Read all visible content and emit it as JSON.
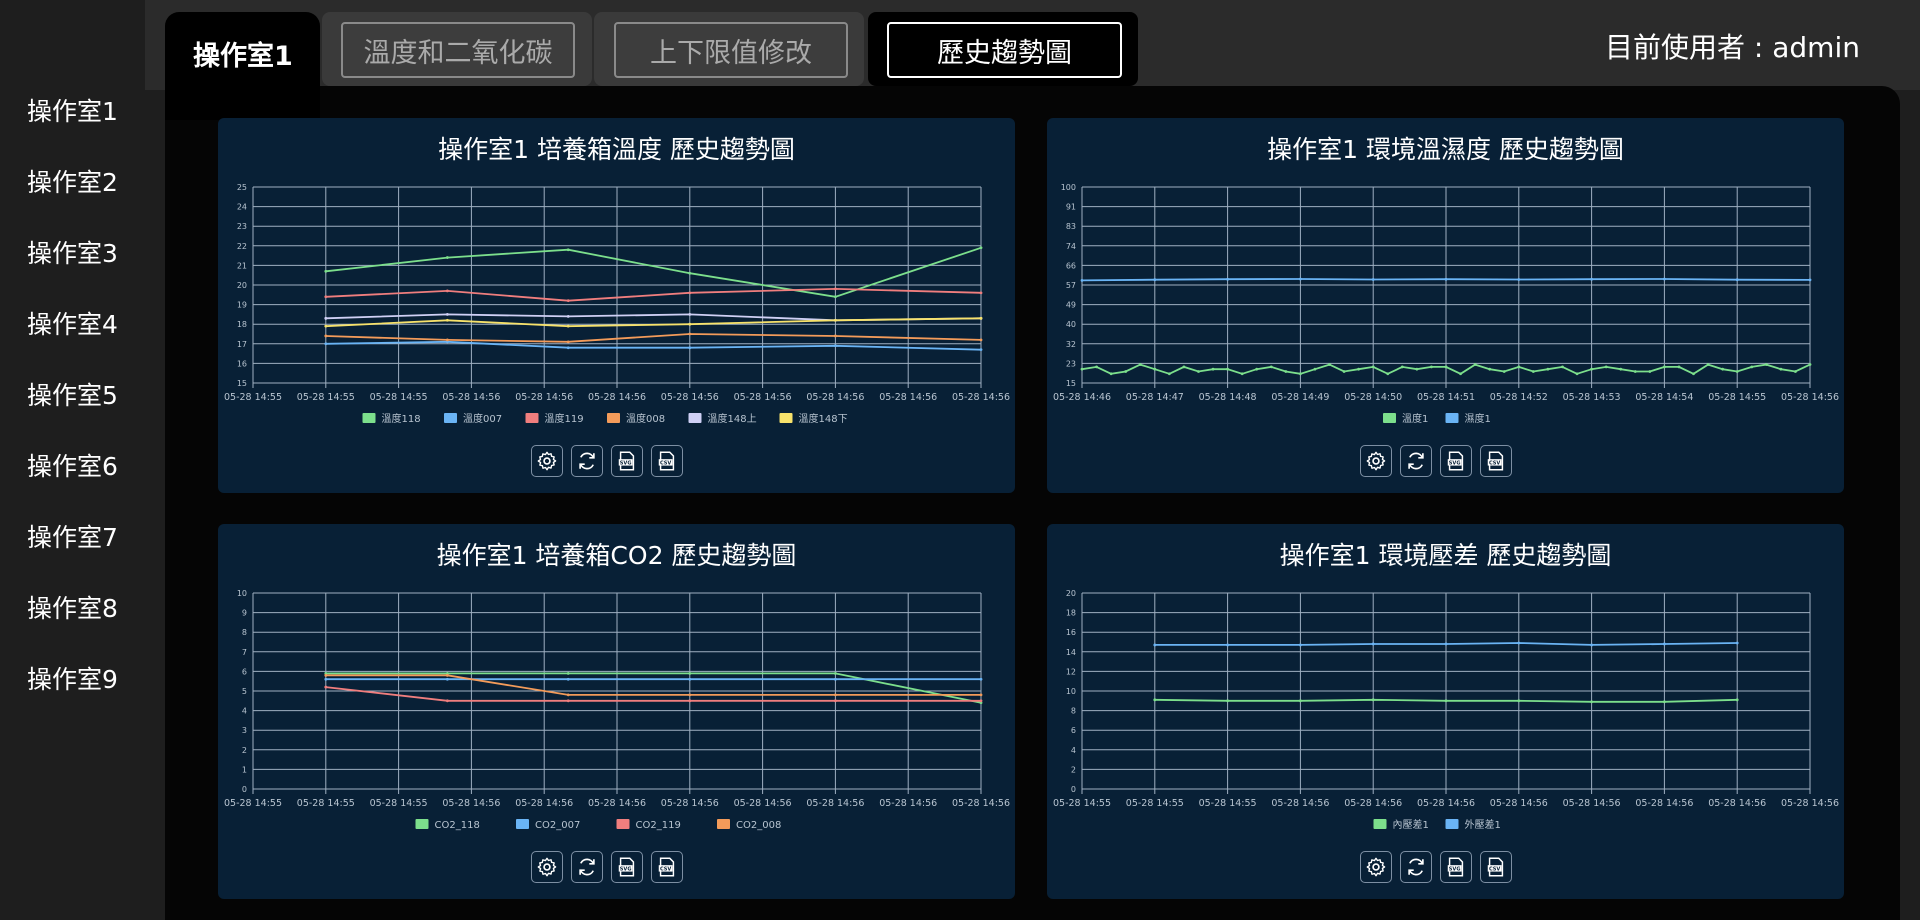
{
  "sidebar": {
    "items": [
      {
        "label": "操作室1"
      },
      {
        "label": "操作室2"
      },
      {
        "label": "操作室3"
      },
      {
        "label": "操作室4"
      },
      {
        "label": "操作室5"
      },
      {
        "label": "操作室6"
      },
      {
        "label": "操作室7"
      },
      {
        "label": "操作室8"
      },
      {
        "label": "操作室9"
      }
    ]
  },
  "header": {
    "room_tab": "操作室1",
    "tabs": [
      {
        "label": "溫度和二氧化碳"
      },
      {
        "label": "上下限值修改"
      },
      {
        "label": "歷史趨勢圖"
      }
    ],
    "active_tab": "歷史趨勢圖",
    "user": "目前使用者 : admin"
  },
  "colors": {
    "green": "#7cdf8c",
    "blue": "#6ab4f5",
    "red": "#f07e7e",
    "orange": "#f39b5a",
    "lavender": "#cfd0f5",
    "yellow": "#f7e26b",
    "panel_bg": "#082036",
    "grid": "#9fb0c2"
  },
  "toolbar_icons": [
    "gear-icon",
    "refresh-icon",
    "svg-export-icon",
    "csv-export-icon"
  ],
  "chart_data": [
    {
      "type": "line",
      "title": "操作室1 培養箱溫度 歷史趨勢圖",
      "x_ticks": [
        "05-28 14:55",
        "05-28 14:55",
        "05-28 14:55",
        "05-28 14:56",
        "05-28 14:56",
        "05-28 14:56",
        "05-28 14:56",
        "05-28 14:56",
        "05-28 14:56",
        "05-28 14:56",
        "05-28 14:56"
      ],
      "ylim": [
        15,
        25
      ],
      "y_ticks": [
        "15",
        "16",
        "17",
        "18",
        "19",
        "20",
        "21",
        "22",
        "23",
        "24",
        "25"
      ],
      "series": [
        {
          "name": "溫度118",
          "color": "#7cdf8c",
          "x": [
            1,
            2.67,
            4.33,
            6,
            8,
            10
          ],
          "y": [
            20.7,
            21.4,
            21.8,
            20.6,
            19.4,
            21.9
          ]
        },
        {
          "name": "溫度007",
          "color": "#6ab4f5",
          "x": [
            1,
            2.67,
            4.33,
            6,
            8,
            10
          ],
          "y": [
            17.0,
            17.1,
            16.8,
            16.8,
            16.9,
            16.7
          ]
        },
        {
          "name": "溫度119",
          "color": "#f07e7e",
          "x": [
            1,
            2.67,
            4.33,
            6,
            8,
            10
          ],
          "y": [
            19.4,
            19.7,
            19.2,
            19.6,
            19.8,
            19.6
          ]
        },
        {
          "name": "溫度008",
          "color": "#f39b5a",
          "x": [
            1,
            2.67,
            4.33,
            6,
            8,
            10
          ],
          "y": [
            17.4,
            17.2,
            17.1,
            17.5,
            17.4,
            17.2
          ]
        },
        {
          "name": "溫度148上",
          "color": "#cfd0f5",
          "x": [
            1,
            2.67,
            4.33,
            6,
            8,
            10
          ],
          "y": [
            18.3,
            18.5,
            18.4,
            18.5,
            18.2,
            18.3
          ]
        },
        {
          "name": "溫度148下",
          "color": "#f7e26b",
          "x": [
            1,
            2.67,
            4.33,
            6,
            8,
            10
          ],
          "y": [
            17.9,
            18.2,
            17.9,
            18.0,
            18.2,
            18.3
          ]
        }
      ]
    },
    {
      "type": "line",
      "title": "操作室1 環境溫濕度 歷史趨勢圖",
      "x_ticks": [
        "05-28 14:46",
        "05-28 14:47",
        "05-28 14:48",
        "05-28 14:49",
        "05-28 14:50",
        "05-28 14:51",
        "05-28 14:52",
        "05-28 14:53",
        "05-28 14:54",
        "05-28 14:55",
        "05-28 14:56"
      ],
      "ylim": [
        15,
        100
      ],
      "y_ticks": [
        "15",
        "23",
        "32",
        "40",
        "49",
        "57",
        "66",
        "74",
        "83",
        "91",
        "100"
      ],
      "series": [
        {
          "name": "溫度1",
          "color": "#7cdf8c",
          "x": [
            0,
            0.2,
            0.4,
            0.6,
            0.8,
            1,
            1.2,
            1.4,
            1.6,
            1.8,
            2,
            2.2,
            2.4,
            2.6,
            2.8,
            3,
            3.2,
            3.4,
            3.6,
            3.8,
            4,
            4.2,
            4.4,
            4.6,
            4.8,
            5,
            5.2,
            5.4,
            5.6,
            5.8,
            6,
            6.2,
            6.4,
            6.6,
            6.8,
            7,
            7.2,
            7.4,
            7.6,
            7.8,
            8,
            8.2,
            8.4,
            8.6,
            8.8,
            9,
            9.2,
            9.4,
            9.6,
            9.8,
            10
          ],
          "y": [
            21,
            22,
            19,
            20,
            23,
            21,
            19,
            22,
            20,
            21,
            21,
            19,
            21,
            22,
            20,
            19,
            21,
            23,
            20,
            21,
            22,
            19,
            22,
            21,
            22,
            22,
            19,
            23,
            21,
            20,
            22,
            20,
            21,
            22,
            19,
            21,
            22,
            21,
            20,
            20,
            22,
            22,
            19,
            23,
            21,
            20,
            22,
            23,
            21,
            20,
            23
          ]
        },
        {
          "name": "濕度1",
          "color": "#6ab4f5",
          "x": [
            0,
            1,
            2,
            3,
            4,
            5,
            6,
            7,
            8,
            9,
            10
          ],
          "y": [
            59.5,
            59.8,
            60.0,
            60.1,
            59.9,
            60.0,
            59.9,
            60.0,
            60.1,
            59.8,
            59.7
          ]
        }
      ]
    },
    {
      "type": "line",
      "title": "操作室1 培養箱CO2 歷史趨勢圖",
      "x_ticks": [
        "05-28 14:55",
        "05-28 14:55",
        "05-28 14:55",
        "05-28 14:56",
        "05-28 14:56",
        "05-28 14:56",
        "05-28 14:56",
        "05-28 14:56",
        "05-28 14:56",
        "05-28 14:56",
        "05-28 14:56"
      ],
      "ylim": [
        0,
        10
      ],
      "y_ticks": [
        "0",
        "1",
        "2",
        "3",
        "4",
        "5",
        "6",
        "7",
        "8",
        "9",
        "10"
      ],
      "series": [
        {
          "name": "CO2_118",
          "color": "#7cdf8c",
          "x": [
            1,
            2.67,
            4.33,
            6,
            8,
            10
          ],
          "y": [
            5.9,
            5.9,
            5.9,
            5.9,
            5.9,
            4.4
          ]
        },
        {
          "name": "CO2_007",
          "color": "#6ab4f5",
          "x": [
            1,
            2.67,
            4.33,
            6,
            8,
            10
          ],
          "y": [
            5.6,
            5.6,
            5.6,
            5.6,
            5.6,
            5.6
          ]
        },
        {
          "name": "CO2_119",
          "color": "#f07e7e",
          "x": [
            1,
            2.67,
            4.33,
            6,
            8,
            10
          ],
          "y": [
            5.2,
            4.5,
            4.5,
            4.5,
            4.5,
            4.5
          ]
        },
        {
          "name": "CO2_008",
          "color": "#f39b5a",
          "x": [
            1,
            2.67,
            4.33,
            6,
            8,
            10
          ],
          "y": [
            5.8,
            5.8,
            4.8,
            4.8,
            4.8,
            4.8
          ]
        }
      ]
    },
    {
      "type": "line",
      "title": "操作室1 環境壓差 歷史趨勢圖",
      "x_ticks": [
        "05-28 14:55",
        "05-28 14:55",
        "05-28 14:55",
        "05-28 14:56",
        "05-28 14:56",
        "05-28 14:56",
        "05-28 14:56",
        "05-28 14:56",
        "05-28 14:56",
        "05-28 14:56",
        "05-28 14:56"
      ],
      "ylim": [
        0,
        20
      ],
      "y_ticks": [
        "0",
        "2",
        "4",
        "6",
        "8",
        "10",
        "12",
        "14",
        "16",
        "18",
        "20"
      ],
      "series": [
        {
          "name": "內壓差1",
          "color": "#7cdf8c",
          "x": [
            1,
            2,
            3,
            4,
            5,
            6,
            7,
            8,
            9
          ],
          "y": [
            9.1,
            9.0,
            9.0,
            9.1,
            9.0,
            9.0,
            8.9,
            8.9,
            9.1
          ]
        },
        {
          "name": "外壓差1",
          "color": "#6ab4f5",
          "x": [
            1,
            2,
            3,
            4,
            5,
            6,
            7,
            8,
            9
          ],
          "y": [
            14.7,
            14.7,
            14.7,
            14.8,
            14.8,
            14.9,
            14.7,
            14.8,
            14.9
          ]
        }
      ]
    }
  ]
}
